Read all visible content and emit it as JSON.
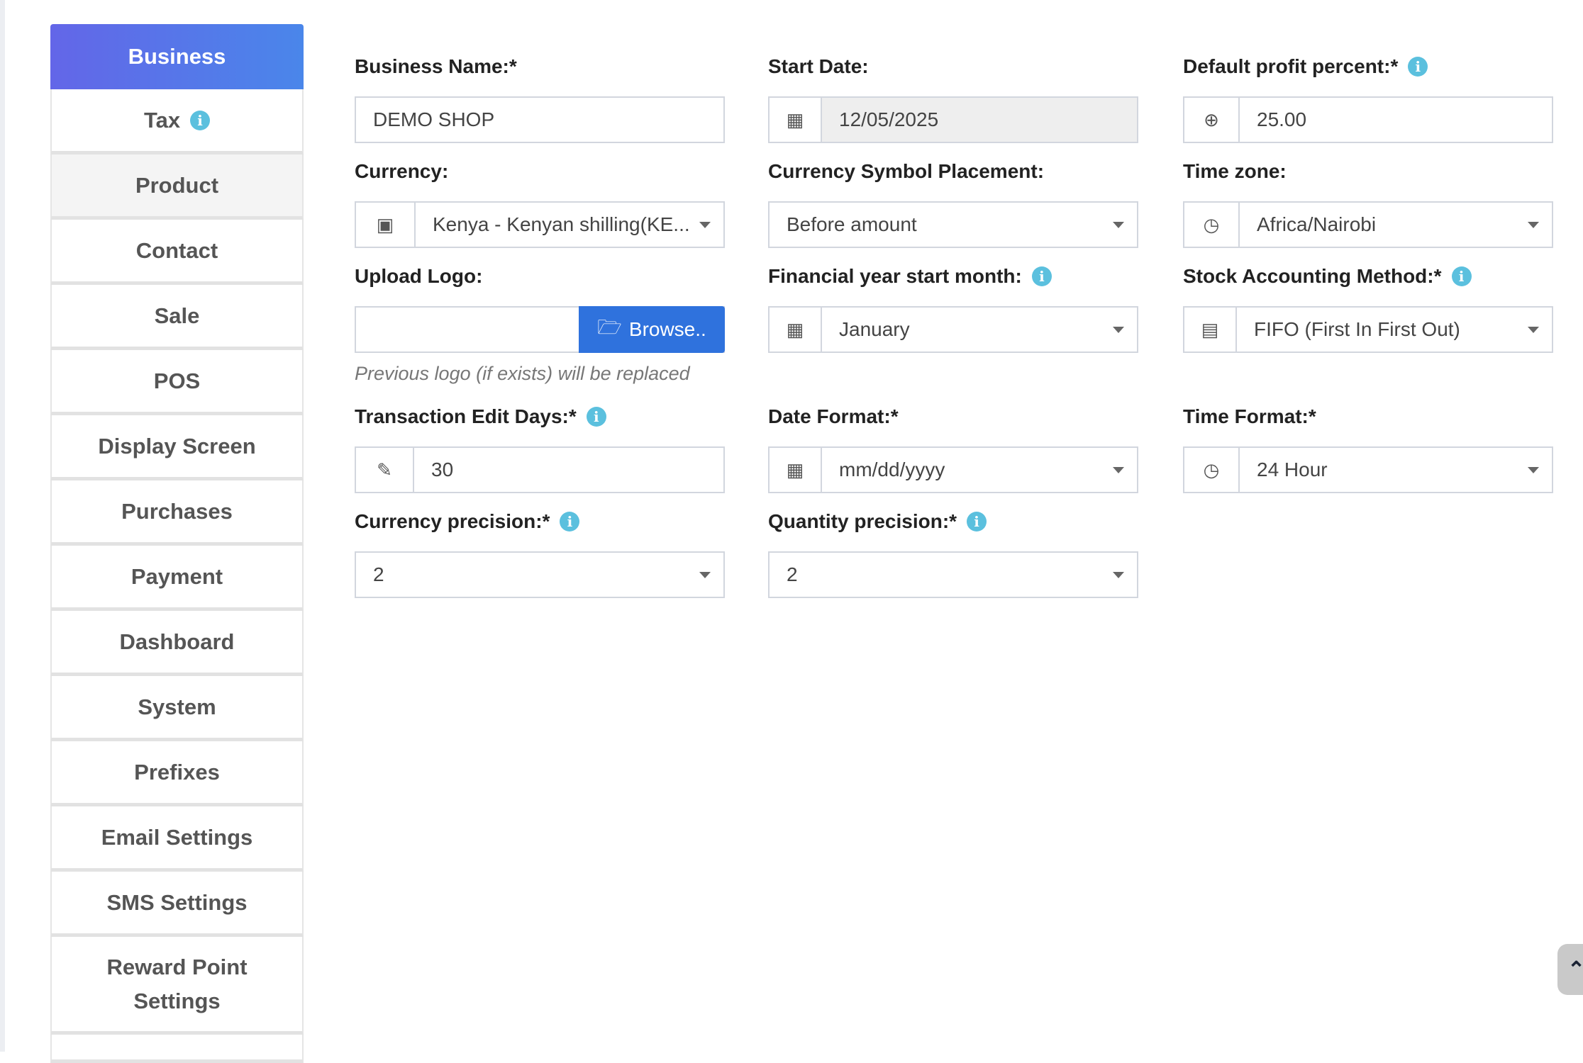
{
  "sidebar": {
    "items": [
      {
        "label": "Business"
      },
      {
        "label": "Tax"
      },
      {
        "label": "Product"
      },
      {
        "label": "Contact"
      },
      {
        "label": "Sale"
      },
      {
        "label": "POS"
      },
      {
        "label": "Display Screen"
      },
      {
        "label": "Purchases"
      },
      {
        "label": "Payment"
      },
      {
        "label": "Dashboard"
      },
      {
        "label": "System"
      },
      {
        "label": "Prefixes"
      },
      {
        "label": "Email Settings"
      },
      {
        "label": "SMS Settings"
      },
      {
        "label": "Reward Point Settings"
      }
    ]
  },
  "form": {
    "business_name": {
      "label": "Business Name:*",
      "value": "DEMO SHOP"
    },
    "start_date": {
      "label": "Start Date:",
      "value": "12/05/2025"
    },
    "default_profit": {
      "label": "Default profit percent:*",
      "value": "25.00"
    },
    "currency": {
      "label": "Currency:",
      "value": "Kenya - Kenyan shilling(KE..."
    },
    "symbol_placement": {
      "label": "Currency Symbol Placement:",
      "value": "Before amount"
    },
    "time_zone": {
      "label": "Time zone:",
      "value": "Africa/Nairobi"
    },
    "upload_logo": {
      "label": "Upload Logo:",
      "button": "Browse..",
      "help": "Previous logo (if exists) will be replaced"
    },
    "fy_start": {
      "label": "Financial year start month:",
      "value": "January"
    },
    "stock_method": {
      "label": "Stock Accounting Method:*",
      "value": "FIFO (First In First Out)"
    },
    "edit_days": {
      "label": "Transaction Edit Days:*",
      "value": "30"
    },
    "date_format": {
      "label": "Date Format:*",
      "value": "mm/dd/yyyy"
    },
    "time_format": {
      "label": "Time Format:*",
      "value": "24 Hour"
    },
    "currency_precision": {
      "label": "Currency precision:*",
      "value": "2"
    },
    "quantity_precision": {
      "label": "Quantity precision:*",
      "value": "2"
    }
  },
  "colors": {
    "active_tab_start": "#6366e8",
    "active_tab_end": "#4a86ea",
    "browse": "#2f72dd",
    "info": "#5bc0de"
  }
}
